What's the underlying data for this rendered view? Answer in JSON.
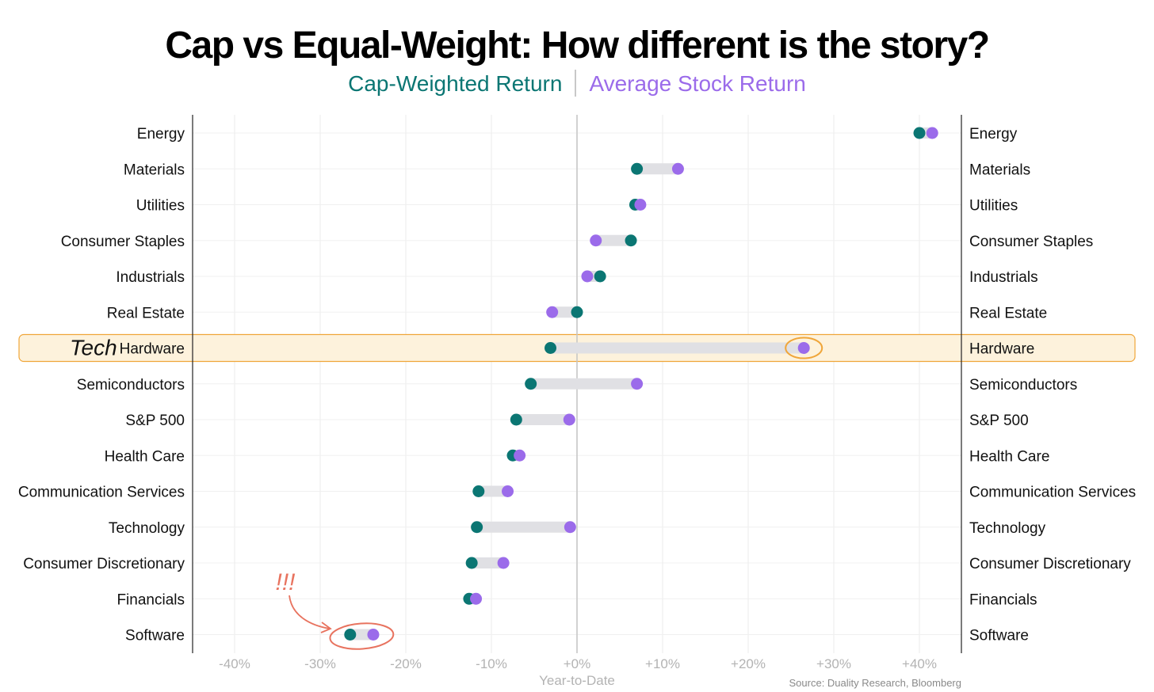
{
  "title": "Cap vs Equal-Weight: How different is the story?",
  "legend": {
    "cap_label": "Cap-Weighted Return",
    "avg_label": "Average Stock Return",
    "cap_color": "#0b7673",
    "avg_color": "#9b6bea"
  },
  "annotations": {
    "tech_note": "Tech",
    "exclaim": "!!!",
    "highlight_color": "#fdf2dc",
    "circle_color": "#f0a63a",
    "alert_color": "#e8735f"
  },
  "source": "Source: Duality Research, Bloomberg",
  "chart_data": {
    "type": "dumbbell",
    "xlabel": "Year-to-Date",
    "xlim": [
      -45,
      45
    ],
    "xticks": [
      -40,
      -30,
      -20,
      -10,
      0,
      10,
      20,
      30,
      40
    ],
    "xtick_labels": [
      "-40%",
      "-30%",
      "-20%",
      "-10%",
      "+0%",
      "+10%",
      "+20%",
      "+30%",
      "+40%"
    ],
    "highlight": "Hardware",
    "alert": "Software",
    "series": [
      {
        "name": "Cap-Weighted Return",
        "key": "cap"
      },
      {
        "name": "Average Stock Return",
        "key": "avg"
      }
    ],
    "rows": [
      {
        "label": "Energy",
        "cap": 40.0,
        "avg": 41.5
      },
      {
        "label": "Materials",
        "cap": 7.0,
        "avg": 11.8
      },
      {
        "label": "Utilities",
        "cap": 6.8,
        "avg": 7.4
      },
      {
        "label": "Consumer Staples",
        "cap": 6.3,
        "avg": 2.2
      },
      {
        "label": "Industrials",
        "cap": 2.7,
        "avg": 1.2
      },
      {
        "label": "Real Estate",
        "cap": 0.0,
        "avg": -2.9
      },
      {
        "label": "Hardware",
        "cap": -3.1,
        "avg": 26.5
      },
      {
        "label": "Semiconductors",
        "cap": -5.4,
        "avg": 7.0
      },
      {
        "label": "S&P 500",
        "cap": -7.1,
        "avg": -0.9
      },
      {
        "label": "Health Care",
        "cap": -7.5,
        "avg": -6.7
      },
      {
        "label": "Communication Services",
        "cap": -11.5,
        "avg": -8.1
      },
      {
        "label": "Technology",
        "cap": -11.7,
        "avg": -0.8
      },
      {
        "label": "Consumer Discretionary",
        "cap": -12.3,
        "avg": -8.6
      },
      {
        "label": "Financials",
        "cap": -12.6,
        "avg": -11.8
      },
      {
        "label": "Software",
        "cap": -26.5,
        "avg": -23.8
      }
    ]
  }
}
